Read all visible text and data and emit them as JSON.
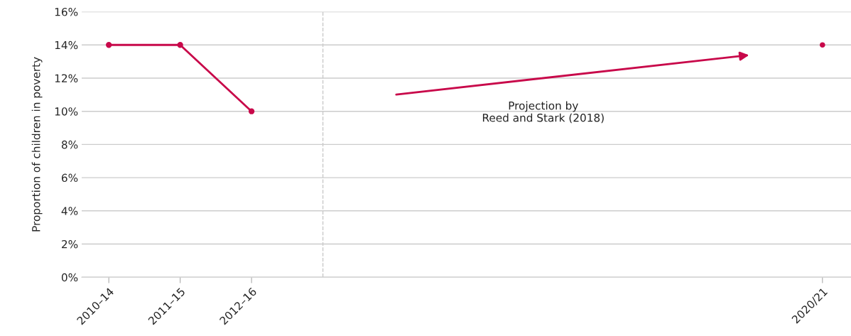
{
  "chart_data": {
    "type": "line",
    "ylabel": "Proportion of children in poverty",
    "categories": [
      "2010–14",
      "2011–15",
      "2012–16",
      null,
      null,
      null,
      null,
      null,
      null,
      null,
      "2020/21"
    ],
    "ylim": [
      0,
      16
    ],
    "yticks": [
      {
        "value": 0,
        "label": "0%"
      },
      {
        "value": 2,
        "label": "2%"
      },
      {
        "value": 4,
        "label": "4%"
      },
      {
        "value": 6,
        "label": "6%"
      },
      {
        "value": 8,
        "label": "8%"
      },
      {
        "value": 10,
        "label": "10%"
      },
      {
        "value": 12,
        "label": "12%"
      },
      {
        "value": 14,
        "label": "14%"
      },
      {
        "value": 16,
        "label": "16%"
      }
    ],
    "series": [
      {
        "color": "#c8084a",
        "values": [
          14,
          14,
          10,
          null,
          null,
          null,
          null,
          null,
          null,
          null,
          null
        ],
        "marker": "circle"
      },
      {
        "type": "scatter",
        "color": "#c8084a",
        "values": [
          null,
          null,
          null,
          null,
          null,
          null,
          null,
          null,
          null,
          null,
          14
        ],
        "marker": "circle"
      },
      {
        "color": "#c8084a",
        "values": [
          null,
          null,
          null,
          null,
          11.0,
          null,
          null,
          null,
          null,
          13.4,
          null
        ],
        "marker": "triangle"
      }
    ],
    "annotations": [
      "Projection by\nReed and Stark (2018)"
    ],
    "grid": "y"
  }
}
